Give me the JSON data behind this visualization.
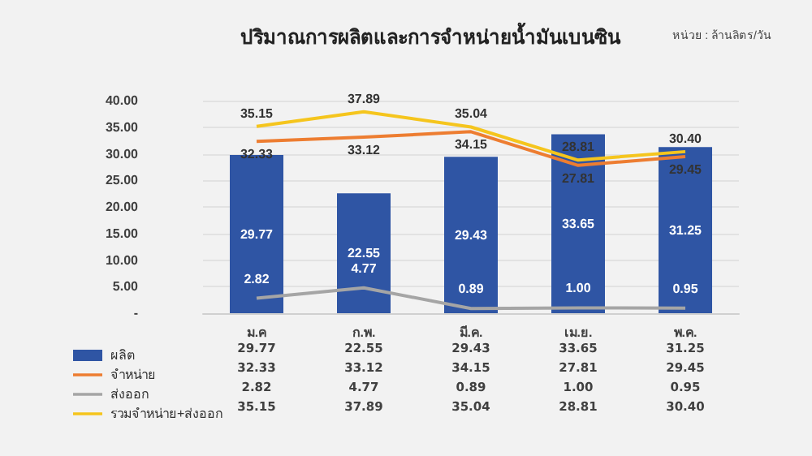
{
  "chart_data": {
    "type": "bar",
    "title": "ปริมาณการผลิตและการจำหน่ายน้ำมันเบนซิน",
    "subtitle": "หน่วย : ล้านลิตร/วัน",
    "categories": [
      "ม.ค",
      "ก.พ.",
      "มี.ค.",
      "เม.ย.",
      "พ.ค."
    ],
    "series": [
      {
        "name": "ผลิต",
        "color": "#2f55a4",
        "values": [
          29.77,
          22.55,
          29.43,
          33.65,
          31.25
        ],
        "value_labels": [
          "29.77",
          "22.55",
          "29.43",
          "33.65",
          "31.25"
        ]
      },
      {
        "name": "จำหน่าย",
        "type": "line",
        "color": "#ed7d31",
        "values": [
          32.33,
          33.12,
          34.15,
          27.81,
          29.45
        ],
        "value_labels": [
          "32.33",
          "33.12",
          "34.15",
          "27.81",
          "29.45"
        ]
      },
      {
        "name": "ส่งออก",
        "type": "line",
        "color": "#a5a5a5",
        "values": [
          2.82,
          4.77,
          0.89,
          1.0,
          0.95
        ],
        "value_labels": [
          "2.82",
          "4.77",
          "0.89",
          "1.00",
          "0.95"
        ]
      },
      {
        "name": "รวมจำหน่าย+ส่งออก",
        "type": "line",
        "color": "#f5c51d",
        "values": [
          35.15,
          37.89,
          35.04,
          28.81,
          30.4
        ],
        "value_labels": [
          "35.15",
          "37.89",
          "35.04",
          "28.81",
          "30.40"
        ]
      }
    ],
    "ylim": [
      0,
      40
    ],
    "yticks": [
      {
        "value": 0,
        "label": "-"
      },
      {
        "value": 5,
        "label": "5.00"
      },
      {
        "value": 10,
        "label": "10.00"
      },
      {
        "value": 15,
        "label": "15.00"
      },
      {
        "value": 20,
        "label": "20.00"
      },
      {
        "value": 25,
        "label": "25.00"
      },
      {
        "value": 30,
        "label": "30.00"
      },
      {
        "value": 35,
        "label": "35.00"
      },
      {
        "value": 40,
        "label": "40.00"
      }
    ],
    "grid": "y",
    "legend": "bottom left",
    "marker": "none"
  }
}
